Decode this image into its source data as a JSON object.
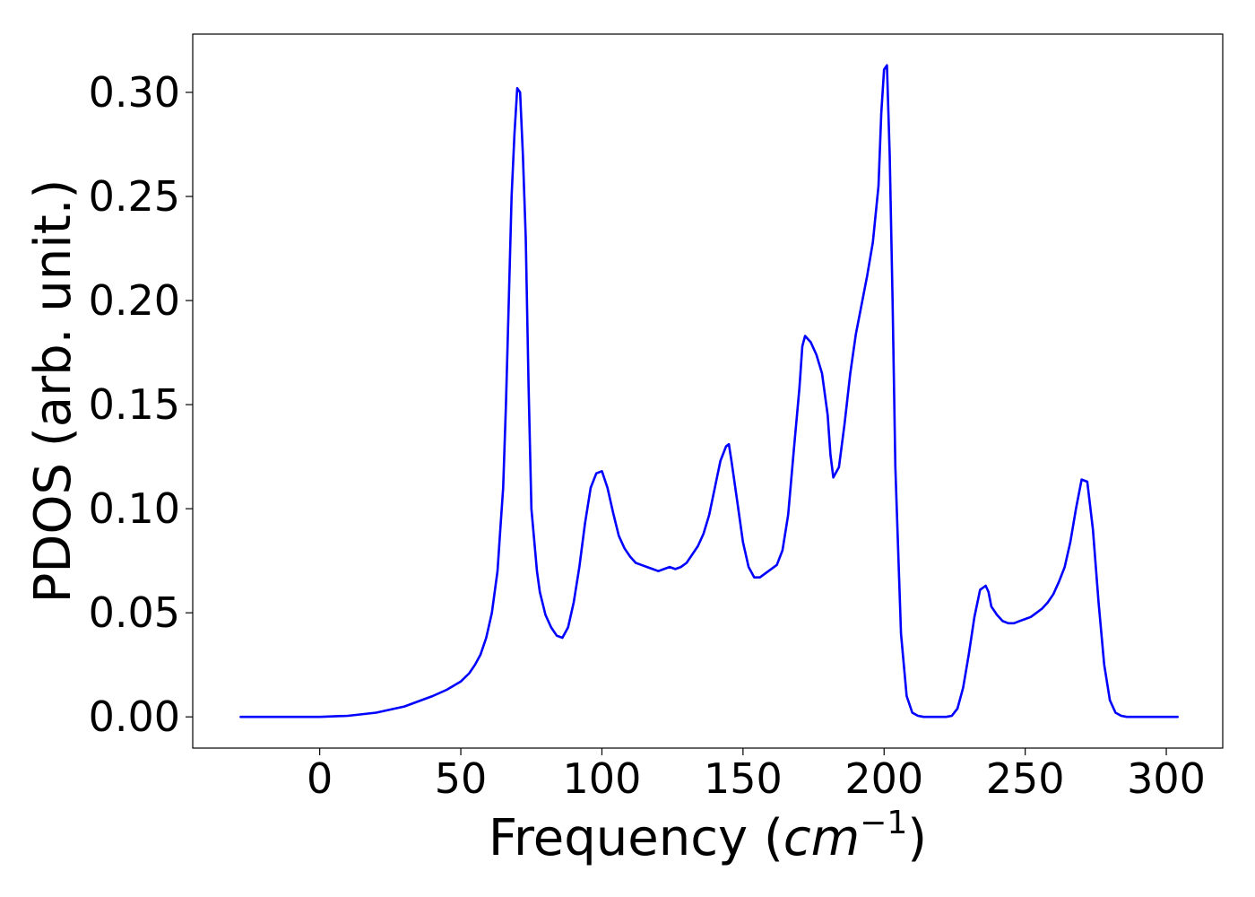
{
  "chart_data": {
    "type": "line",
    "title": "",
    "xlabel_main": "Frequency (",
    "xlabel_unit": "cm",
    "xlabel_exp": "−1",
    "xlabel_end": ")",
    "ylabel": "PDOS (arb. unit.)",
    "xlim": [
      -45,
      320
    ],
    "ylim": [
      -0.015,
      0.328
    ],
    "xticks": [
      0,
      50,
      100,
      150,
      200,
      250,
      300
    ],
    "xtick_labels": [
      "0",
      "50",
      "100",
      "150",
      "200",
      "250",
      "300"
    ],
    "yticks": [
      0.0,
      0.05,
      0.1,
      0.15,
      0.2,
      0.25,
      0.3
    ],
    "ytick_labels": [
      "0.00",
      "0.05",
      "0.10",
      "0.15",
      "0.20",
      "0.25",
      "0.30"
    ],
    "grid": false,
    "color": "#0000ff",
    "x": [
      -28,
      0,
      10,
      20,
      30,
      40,
      45,
      50,
      53,
      55,
      57,
      59,
      61,
      63,
      64,
      65,
      66,
      67,
      68,
      69,
      70,
      71,
      72,
      73,
      74,
      75,
      76,
      77,
      78,
      80,
      82,
      84,
      86,
      88,
      90,
      92,
      94,
      96,
      98,
      100,
      102,
      104,
      106,
      108,
      110,
      112,
      114,
      116,
      118,
      120,
      122,
      124,
      126,
      128,
      130,
      132,
      134,
      136,
      138,
      140,
      142,
      144,
      145,
      146,
      148,
      150,
      152,
      154,
      156,
      158,
      160,
      162,
      164,
      166,
      168,
      170,
      171,
      172,
      174,
      176,
      178,
      180,
      181,
      182,
      184,
      186,
      188,
      190,
      192,
      194,
      196,
      198,
      199,
      200,
      201,
      202,
      203,
      204,
      206,
      208,
      210,
      212,
      214,
      216,
      218,
      220,
      222,
      224,
      226,
      228,
      230,
      232,
      234,
      236,
      237,
      238,
      240,
      242,
      244,
      246,
      248,
      250,
      252,
      254,
      256,
      258,
      260,
      262,
      264,
      266,
      268,
      270,
      272,
      274,
      276,
      278,
      280,
      282,
      284,
      286,
      290,
      295,
      304
    ],
    "y": [
      0.0,
      0.0,
      0.0005,
      0.002,
      0.005,
      0.01,
      0.013,
      0.017,
      0.021,
      0.025,
      0.03,
      0.038,
      0.05,
      0.07,
      0.09,
      0.11,
      0.15,
      0.2,
      0.25,
      0.28,
      0.302,
      0.3,
      0.27,
      0.23,
      0.16,
      0.1,
      0.085,
      0.07,
      0.06,
      0.049,
      0.043,
      0.039,
      0.038,
      0.043,
      0.055,
      0.072,
      0.093,
      0.11,
      0.117,
      0.118,
      0.11,
      0.098,
      0.087,
      0.081,
      0.077,
      0.074,
      0.073,
      0.072,
      0.071,
      0.07,
      0.071,
      0.072,
      0.071,
      0.072,
      0.074,
      0.078,
      0.082,
      0.088,
      0.097,
      0.11,
      0.123,
      0.13,
      0.131,
      0.122,
      0.103,
      0.084,
      0.072,
      0.067,
      0.067,
      0.069,
      0.071,
      0.073,
      0.08,
      0.097,
      0.128,
      0.158,
      0.178,
      0.183,
      0.18,
      0.174,
      0.165,
      0.145,
      0.126,
      0.115,
      0.12,
      0.141,
      0.165,
      0.184,
      0.198,
      0.212,
      0.228,
      0.255,
      0.29,
      0.311,
      0.313,
      0.27,
      0.2,
      0.12,
      0.04,
      0.01,
      0.002,
      0.0005,
      0.0,
      0.0,
      0.0,
      0.0,
      0.0,
      0.0005,
      0.004,
      0.014,
      0.03,
      0.048,
      0.061,
      0.063,
      0.06,
      0.053,
      0.049,
      0.046,
      0.045,
      0.045,
      0.046,
      0.047,
      0.048,
      0.05,
      0.052,
      0.055,
      0.059,
      0.065,
      0.072,
      0.084,
      0.1,
      0.114,
      0.113,
      0.09,
      0.055,
      0.025,
      0.008,
      0.002,
      0.0005,
      0.0,
      0.0,
      0.0,
      0.0
    ]
  }
}
